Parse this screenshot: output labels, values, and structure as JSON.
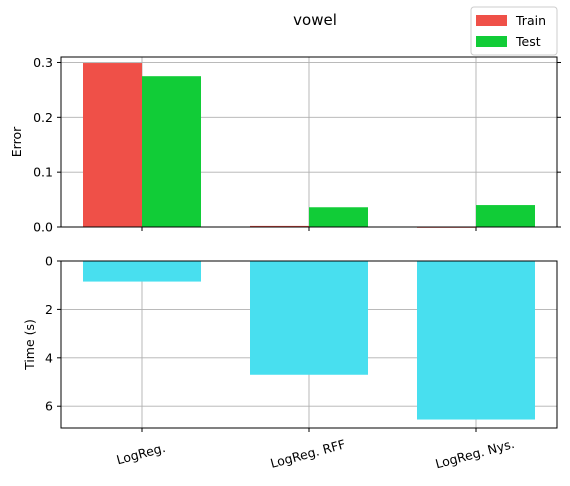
{
  "chart_data": [
    {
      "type": "bar",
      "title": "vowel",
      "ylabel": "Error",
      "xlabel": "",
      "categories": [
        "LogReg.",
        "LogReg. RFF",
        "LogReg. Nys."
      ],
      "series": [
        {
          "name": "Train",
          "color": "#ef5048",
          "values": [
            0.299,
            0.002,
            0.0
          ]
        },
        {
          "name": "Test",
          "color": "#11cc37",
          "values": [
            0.275,
            0.036,
            0.04
          ]
        }
      ],
      "ylim": [
        0,
        0.31
      ],
      "yticks": [
        "0.0",
        "0.1",
        "0.2",
        "0.3"
      ],
      "grid": true,
      "legend": "top-right"
    },
    {
      "type": "bar",
      "ylabel": "Time (s)",
      "xlabel": "",
      "categories": [
        "LogReg.",
        "LogReg. RFF",
        "LogReg. Nys."
      ],
      "series": [
        {
          "color": "#48dfef",
          "values": [
            0.85,
            4.7,
            6.55
          ]
        }
      ],
      "ylim": [
        6.9,
        0
      ],
      "yaxis_inverted": true,
      "yticks": [
        "0",
        "2",
        "4",
        "6"
      ],
      "grid": true
    }
  ]
}
